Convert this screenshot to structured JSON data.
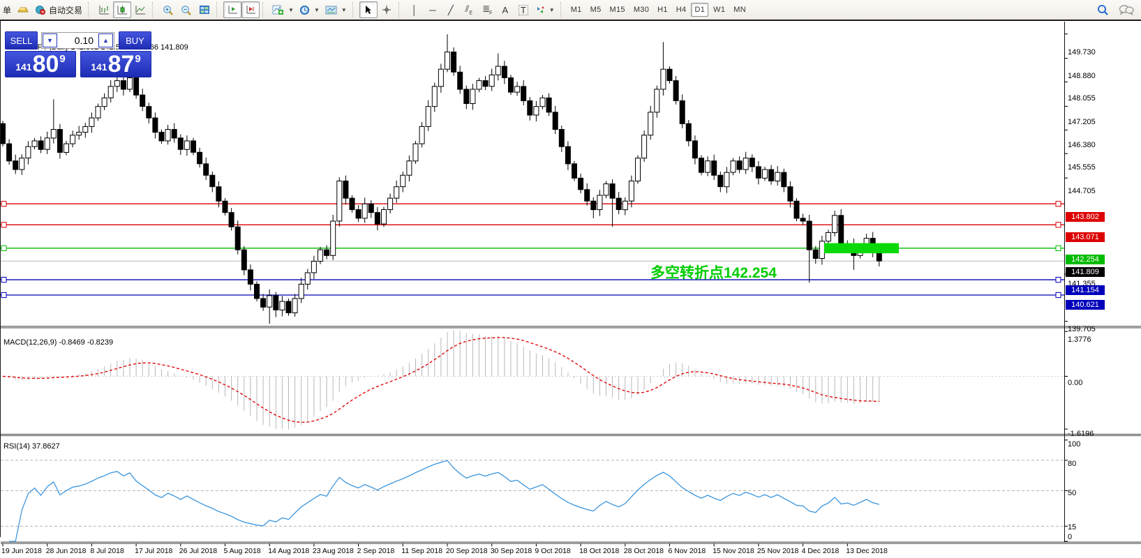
{
  "toolbar": {
    "clipped_button_text": "单",
    "autotrading_label": "自动交易",
    "text_tool_glyph": "A",
    "label_tool_glyph": "T",
    "channel_sub": "E",
    "fibo_sub": "F",
    "timeframes": [
      "M1",
      "M5",
      "M15",
      "M30",
      "H1",
      "H4",
      "D1",
      "W1",
      "MN"
    ],
    "active_timeframe": "D1"
  },
  "chart": {
    "title": "GBPJPY-,Daily 142.362 142.520 141.566 141.809",
    "title_triangle": "▲"
  },
  "trade_panel": {
    "sell_label": "SELL",
    "buy_label": "BUY",
    "volume": "0.10",
    "sell_price": {
      "small": "141",
      "big": "80",
      "sup": "9"
    },
    "buy_price": {
      "small": "141",
      "big": "87",
      "sup": "9"
    }
  },
  "chart_data": {
    "type": "candlestick",
    "symbol": "GBPJPY-",
    "timeframe": "Daily",
    "ohlc_current": {
      "open": 142.362,
      "high": 142.52,
      "low": 141.566,
      "close": 141.809
    },
    "first_open": 146.6,
    "closes": [
      145.9,
      145.3,
      145.0,
      145.4,
      145.8,
      146.0,
      145.7,
      146.1,
      146.4,
      145.6,
      145.9,
      146.2,
      146.3,
      146.5,
      146.8,
      147.2,
      147.5,
      147.9,
      148.1,
      147.8,
      148.2,
      147.6,
      147.2,
      146.8,
      146.3,
      146.0,
      146.4,
      146.1,
      145.7,
      146.0,
      145.6,
      145.2,
      144.8,
      144.4,
      143.9,
      143.5,
      143.0,
      142.2,
      141.5,
      141.0,
      140.5,
      140.2,
      140.6,
      140.1,
      140.4,
      140.0,
      140.5,
      141.0,
      141.4,
      141.8,
      142.2,
      142.0,
      143.2,
      144.6,
      144.0,
      143.6,
      143.3,
      143.8,
      143.5,
      143.1,
      143.6,
      144.0,
      144.4,
      144.8,
      145.3,
      145.9,
      146.5,
      147.2,
      147.9,
      148.5,
      149.1,
      148.4,
      147.8,
      147.3,
      147.8,
      148.1,
      147.9,
      148.3,
      148.6,
      148.2,
      147.7,
      147.9,
      147.4,
      146.9,
      147.2,
      147.5,
      147.0,
      146.4,
      145.8,
      145.2,
      144.7,
      144.3,
      143.9,
      143.6,
      144.1,
      144.5,
      144.0,
      143.6,
      143.9,
      144.6,
      145.4,
      146.2,
      147.0,
      147.8,
      148.5,
      148.1,
      147.4,
      146.6,
      146.0,
      145.4,
      144.9,
      145.3,
      144.8,
      144.4,
      144.9,
      145.3,
      145.0,
      145.4,
      145.1,
      144.7,
      145.0,
      144.6,
      144.9,
      144.4,
      143.9,
      143.3,
      143.2,
      142.2,
      141.9,
      142.5,
      142.8,
      143.4,
      142.3,
      142.4,
      142.0,
      142.3,
      142.6,
      142.1,
      141.81
    ],
    "wick_overrides": {
      "0": [
        146.7,
        null
      ],
      "8": [
        147.45,
        null
      ],
      "19": [
        148.55,
        null
      ],
      "42": [
        null,
        139.62
      ],
      "43": [
        null,
        139.85
      ],
      "45": [
        null,
        139.9
      ],
      "70": [
        149.72,
        null
      ],
      "78": [
        149.05,
        null
      ],
      "93": [
        null,
        143.3
      ],
      "96": [
        null,
        143.0
      ],
      "104": [
        149.45,
        null
      ],
      "127": [
        null,
        141.05
      ],
      "134": [
        null,
        141.5
      ]
    },
    "date_ticks": [
      "19 Jun 2018",
      "28 Jun 2018",
      "8 Jul 2018",
      "17 Jul 2018",
      "26 Jul 2018",
      "5 Aug 2018",
      "14 Aug 2018",
      "23 Aug 2018",
      "2 Sep 2018",
      "11 Sep 2018",
      "20 Sep 2018",
      "30 Sep 2018",
      "9 Oct 2018",
      "18 Oct 2018",
      "28 Oct 2018",
      "6 Nov 2018",
      "15 Nov 2018",
      "25 Nov 2018",
      "4 Dec 2018",
      "13 Dec 2018"
    ],
    "candles_per_tick": 7,
    "price_axis_ticks": [
      "149.730",
      "148.880",
      "148.055",
      "147.205",
      "146.380",
      "145.555",
      "144.705",
      "141.355",
      "139.705"
    ],
    "levels": [
      {
        "price": 143.802,
        "label": "143.802",
        "color": "#dd0000"
      },
      {
        "price": 143.071,
        "label": "143.071",
        "color": "#dd0000"
      },
      {
        "price": 142.254,
        "label": "142.254",
        "color": "#00bb00"
      },
      {
        "price": 141.154,
        "label": "141.154",
        "color": "#0000bb"
      },
      {
        "price": 140.621,
        "label": "140.621",
        "color": "#0000bb"
      }
    ],
    "current_price": {
      "value": 141.809,
      "label": "141.809",
      "line_color": "#b8b8b8",
      "label_bg": "#000000"
    },
    "highlight_rect": {
      "price": 142.254,
      "color": "#09d909"
    },
    "annotation": {
      "text": "多空转折点142.254",
      "color": "#00cc00"
    },
    "macd": {
      "label": "MACD(12,26,9) -0.8469 -0.8239",
      "fast": 12,
      "slow": 26,
      "signal_period": 9,
      "current_main": -0.8469,
      "current_signal": -0.8239,
      "axis_ticks": [
        "1.3776",
        "0.00",
        "-1.6196"
      ],
      "histogram_color": "#b8b8b8",
      "signal_color": "#e00000"
    },
    "rsi": {
      "label": "RSI(14) 37.8627",
      "period": 14,
      "current": 37.8627,
      "axis_ticks": [
        "100",
        "80",
        "50",
        "15",
        "0"
      ],
      "level_lines": [
        80,
        50,
        15
      ],
      "line_color": "#3f97dd"
    }
  }
}
